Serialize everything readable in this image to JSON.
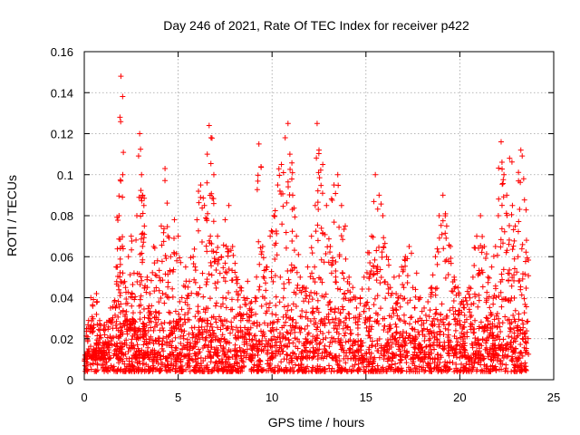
{
  "chart_data": {
    "type": "scatter",
    "title": "Day 246 of 2021, Rate Of TEC Index for receiver p422",
    "xlabel": "GPS time / hours",
    "ylabel": "ROTI / TECUs",
    "xlim": [
      0,
      25
    ],
    "ylim": [
      0,
      0.16
    ],
    "xticks": [
      0,
      5,
      10,
      15,
      20,
      25
    ],
    "yticks": [
      0,
      0.02,
      0.04,
      0.06,
      0.08,
      0.1,
      0.12,
      0.14,
      0.16
    ],
    "xtick_labels": [
      "0",
      "5",
      "10",
      "15",
      "20",
      "25"
    ],
    "ytick_labels": [
      "0",
      "0.02",
      "0.04",
      "0.06",
      "0.08",
      "0.1",
      "0.12",
      "0.14",
      "0.16"
    ],
    "grid": true,
    "marker": "+",
    "color": "#ff0000",
    "series": [
      {
        "name": "ROTI",
        "x": [
          0.05,
          0.2,
          0.35,
          0.5,
          0.65,
          0.8,
          1.0,
          1.2,
          1.4,
          1.6,
          1.75,
          1.85,
          1.9,
          1.95,
          2.05,
          2.2,
          2.35,
          2.5,
          2.65,
          2.8,
          2.95,
          3.05,
          3.1,
          3.2,
          3.35,
          3.5,
          3.7,
          3.9,
          4.1,
          4.3,
          4.45,
          4.6,
          4.8,
          5.0,
          5.2,
          5.4,
          5.6,
          5.8,
          6.0,
          6.2,
          6.4,
          6.55,
          6.65,
          6.75,
          6.9,
          7.1,
          7.3,
          7.5,
          7.7,
          7.9,
          8.1,
          8.3,
          8.5,
          8.7,
          8.9,
          9.1,
          9.3,
          9.5,
          9.7,
          9.9,
          10.1,
          10.3,
          10.5,
          10.7,
          10.85,
          10.95,
          11.1,
          11.3,
          11.5,
          11.7,
          11.9,
          12.1,
          12.3,
          12.4,
          12.5,
          12.7,
          12.9,
          13.1,
          13.3,
          13.5,
          13.7,
          13.9,
          14.1,
          14.3,
          14.5,
          14.7,
          14.9,
          15.1,
          15.3,
          15.5,
          15.7,
          15.9,
          16.1,
          16.3,
          16.5,
          16.7,
          16.9,
          17.1,
          17.3,
          17.5,
          17.7,
          17.9,
          18.1,
          18.3,
          18.5,
          18.7,
          18.9,
          19.1,
          19.3,
          19.5,
          19.7,
          19.9,
          20.1,
          20.3,
          20.5,
          20.7,
          20.9,
          21.1,
          21.3,
          21.5,
          21.7,
          21.9,
          22.05,
          22.2,
          22.35,
          22.5,
          22.65,
          22.8,
          22.95,
          23.1,
          23.25,
          23.4,
          23.55
        ],
        "y": [
          0.012,
          0.025,
          0.04,
          0.015,
          0.042,
          0.02,
          0.018,
          0.028,
          0.035,
          0.038,
          0.055,
          0.08,
          0.128,
          0.148,
          0.1,
          0.045,
          0.06,
          0.07,
          0.052,
          0.08,
          0.12,
          0.1,
          0.09,
          0.075,
          0.05,
          0.042,
          0.065,
          0.058,
          0.075,
          0.103,
          0.07,
          0.06,
          0.078,
          0.07,
          0.04,
          0.055,
          0.048,
          0.06,
          0.078,
          0.095,
          0.085,
          0.11,
          0.124,
          0.118,
          0.1,
          0.07,
          0.06,
          0.078,
          0.085,
          0.065,
          0.05,
          0.045,
          0.04,
          0.048,
          0.038,
          0.04,
          0.115,
          0.065,
          0.055,
          0.07,
          0.08,
          0.095,
          0.105,
          0.118,
          0.125,
          0.11,
          0.09,
          0.07,
          0.05,
          0.045,
          0.055,
          0.07,
          0.085,
          0.125,
          0.112,
          0.105,
          0.085,
          0.065,
          0.095,
          0.1,
          0.085,
          0.075,
          0.05,
          0.045,
          0.035,
          0.04,
          0.05,
          0.062,
          0.07,
          0.1,
          0.09,
          0.08,
          0.06,
          0.045,
          0.05,
          0.04,
          0.055,
          0.06,
          0.065,
          0.045,
          0.052,
          0.04,
          0.035,
          0.038,
          0.045,
          0.06,
          0.08,
          0.09,
          0.075,
          0.065,
          0.05,
          0.045,
          0.038,
          0.04,
          0.045,
          0.05,
          0.07,
          0.08,
          0.065,
          0.05,
          0.055,
          0.065,
          0.08,
          0.116,
          0.1,
          0.09,
          0.108,
          0.085,
          0.075,
          0.06,
          0.112,
          0.098,
          0.068
        ]
      }
    ]
  }
}
